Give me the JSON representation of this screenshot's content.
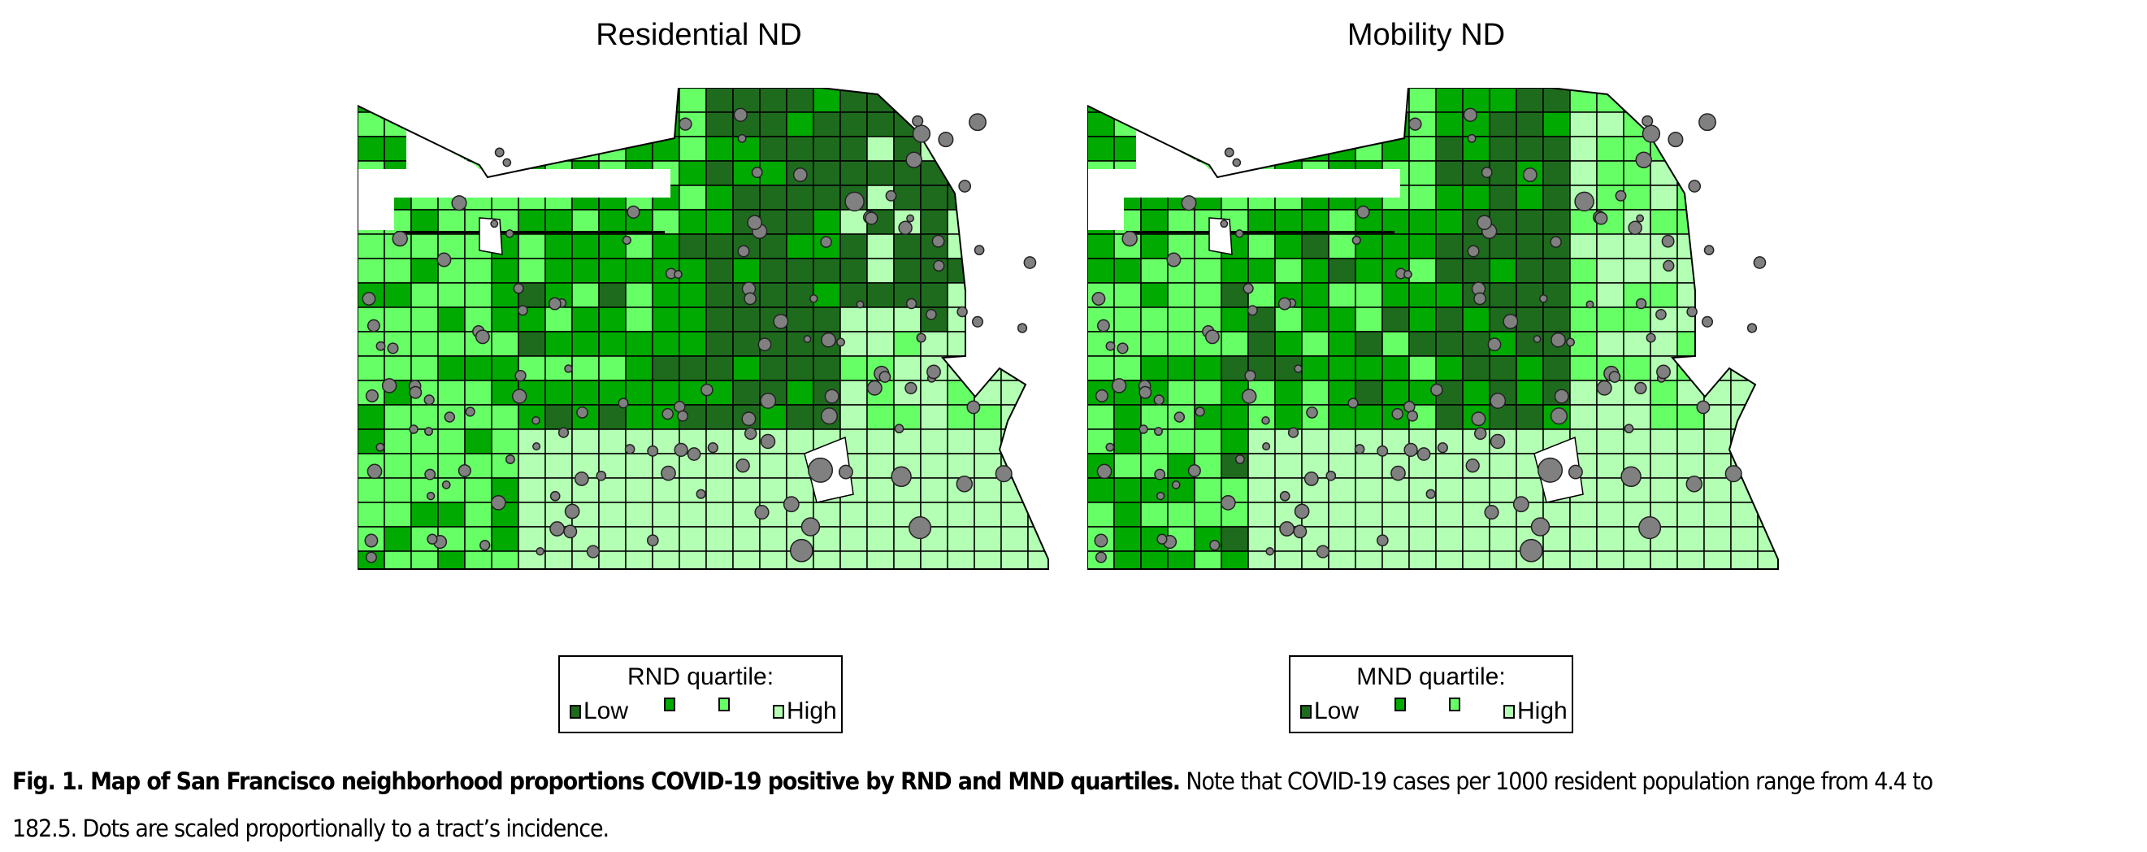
{
  "maps": [
    {
      "title": "Residential ND",
      "legend_title": "RND quartile:",
      "legend_labels": [
        "Low",
        "",
        "",
        "High"
      ]
    },
    {
      "title": "Mobility ND",
      "legend_title": "MND quartile:",
      "legend_labels": [
        "Low",
        "",
        "",
        "High"
      ]
    }
  ],
  "quartile_colors": [
    "#1e6b1e",
    "#00aa00",
    "#66ff66",
    "#b3ffb3"
  ],
  "dot_color": "#808080",
  "caption": {
    "bold": "Fig. 1. Map of San Francisco neighborhood proportions COVID-19 positive by RND and MND quartiles.",
    "text": " Note that COVID-19 cases per 1000 resident population range from 4.4 to 182.5. Dots are scaled proportionally to a tract’s incidence."
  }
}
